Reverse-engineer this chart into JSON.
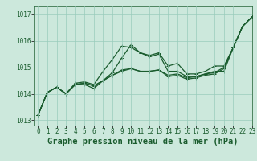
{
  "title": "Graphe pression niveau de la mer (hPa)",
  "background_color": "#cce8dc",
  "grid_color": "#99ccbb",
  "line_color": "#1a5c2e",
  "xlim": [
    -0.5,
    23
  ],
  "ylim": [
    1012.8,
    1017.3
  ],
  "yticks": [
    1013,
    1014,
    1015,
    1016,
    1017
  ],
  "xticks": [
    0,
    1,
    2,
    3,
    4,
    5,
    6,
    7,
    8,
    9,
    10,
    11,
    12,
    13,
    14,
    15,
    16,
    17,
    18,
    19,
    20,
    21,
    22,
    23
  ],
  "series": [
    [
      1013.2,
      1014.05,
      1014.25,
      1014.0,
      1014.4,
      1014.45,
      1014.35,
      1014.85,
      1015.3,
      1015.8,
      1015.75,
      1015.55,
      1015.45,
      1015.55,
      1015.05,
      1015.15,
      1014.75,
      1014.75,
      1014.85,
      1015.05,
      1015.05,
      1015.75,
      1016.55,
      1016.9
    ],
    [
      1013.2,
      1014.05,
      1014.25,
      1014.0,
      1014.35,
      1014.35,
      1014.2,
      1014.5,
      1014.8,
      1015.35,
      1015.85,
      1015.55,
      1015.4,
      1015.5,
      1014.85,
      1014.85,
      1014.65,
      1014.65,
      1014.75,
      1014.85,
      1014.85,
      1015.75,
      1016.55,
      1016.9
    ],
    [
      1013.2,
      1014.05,
      1014.25,
      1014.0,
      1014.35,
      1014.4,
      1014.3,
      1014.5,
      1014.7,
      1014.9,
      1014.95,
      1014.85,
      1014.85,
      1014.9,
      1014.7,
      1014.75,
      1014.6,
      1014.65,
      1014.75,
      1014.8,
      1015.0,
      1015.75,
      1016.55,
      1016.9
    ],
    [
      1013.2,
      1014.05,
      1014.25,
      1014.0,
      1014.35,
      1014.4,
      1014.3,
      1014.5,
      1014.7,
      1014.85,
      1014.95,
      1014.85,
      1014.85,
      1014.9,
      1014.65,
      1014.7,
      1014.55,
      1014.6,
      1014.7,
      1014.75,
      1014.95,
      1015.75,
      1016.55,
      1016.9
    ]
  ],
  "marker": "+",
  "markersize": 3.5,
  "linewidth": 0.9,
  "title_fontsize": 7.5,
  "tick_fontsize": 5.5,
  "figsize": [
    3.2,
    2.0
  ],
  "dpi": 100
}
